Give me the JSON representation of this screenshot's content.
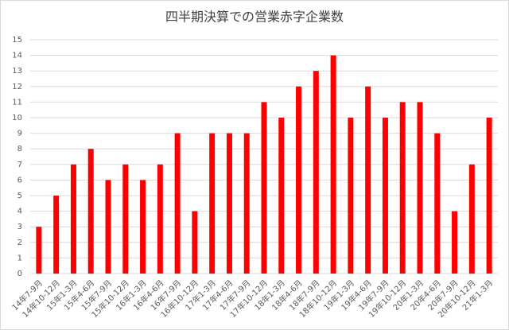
{
  "chart_data": {
    "type": "bar",
    "title": "四半期決算での営業赤字企業数",
    "categories": [
      "14年7-9月",
      "14年10-12月",
      "15年1-3月",
      "15年4-6月",
      "15年7-9月",
      "15年10-12月",
      "16年1-3月",
      "16年4-6月",
      "16年7-9月",
      "16年10-12月",
      "17年1-3月",
      "17年4-6月",
      "17年7-9月",
      "17年10-12月",
      "18年1-3月",
      "18年4-6月",
      "18年7-9月",
      "18年10-12月",
      "19年1-3月",
      "19年4-6月",
      "19年7-9月",
      "19年10-12月",
      "20年1-3月",
      "20年4-6月",
      "20年7-9月",
      "20年10-12月",
      "21年1-3月"
    ],
    "values": [
      3,
      5,
      7,
      8,
      6,
      7,
      6,
      7,
      9,
      4,
      9,
      9,
      9,
      11,
      10,
      12,
      13,
      14,
      10,
      12,
      10,
      11,
      11,
      9,
      4,
      7,
      10
    ],
    "color": "#ff0000",
    "ylim": [
      0,
      15
    ],
    "yticks": [
      0,
      1,
      2,
      3,
      4,
      5,
      6,
      7,
      8,
      9,
      10,
      11,
      12,
      13,
      14,
      15
    ],
    "grid": true
  }
}
